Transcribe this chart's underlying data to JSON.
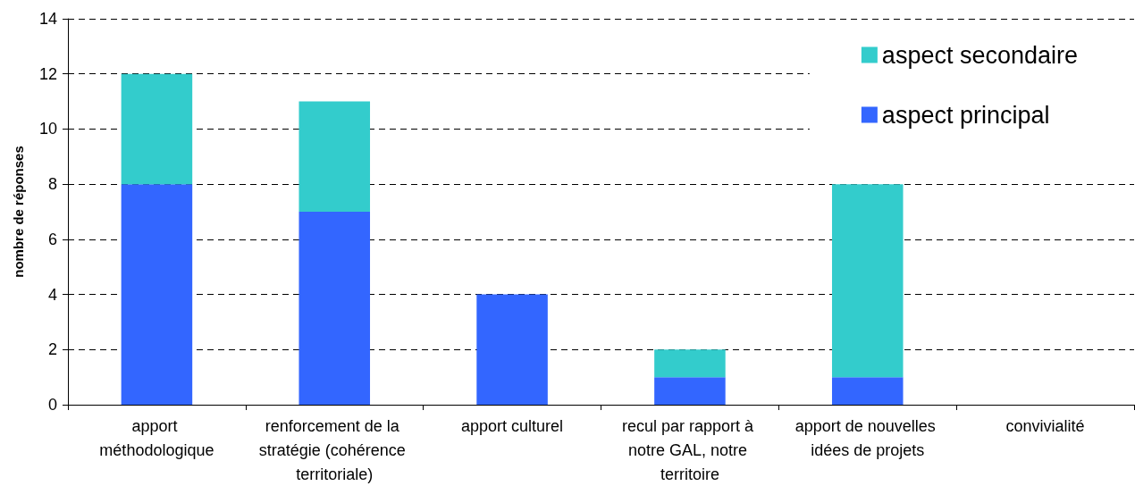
{
  "chart_data": {
    "type": "bar",
    "ylabel": "nombre de réponses",
    "categories": [
      "apport méthodologique",
      "renforcement de la stratégie (cohérence territoriale)",
      "apport culturel",
      "recul par rapport à notre GAL, notre territoire",
      "apport de nouvelles idées de projets",
      "convivialité"
    ],
    "series": [
      {
        "name": "aspect principal",
        "color": "#3366ff",
        "values": [
          8,
          7,
          4,
          1,
          1,
          0
        ]
      },
      {
        "name": "aspect secondaire",
        "color": "#33cccc",
        "values": [
          4,
          4,
          0,
          1,
          7,
          0
        ]
      }
    ],
    "stacked": true,
    "ylim": [
      0,
      14
    ],
    "yticks": [
      0,
      2,
      4,
      6,
      8,
      10,
      12,
      14
    ],
    "grid": "y",
    "legend": "top right"
  }
}
